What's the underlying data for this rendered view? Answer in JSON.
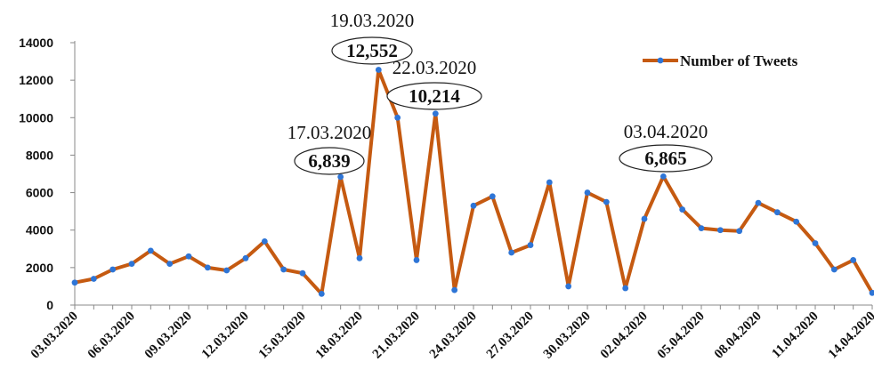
{
  "chart_data": {
    "type": "line",
    "title": "",
    "xlabel": "",
    "ylabel": "",
    "ylim": [
      0,
      14000
    ],
    "yticks": [
      0,
      2000,
      4000,
      6000,
      8000,
      10000,
      12000,
      14000
    ],
    "ytick_labels": [
      "0",
      "2000",
      "4000",
      "6000",
      "8000",
      "10000",
      "12000",
      "14000"
    ],
    "x": [
      "03.03.2020",
      "04.03.2020",
      "05.03.2020",
      "06.03.2020",
      "07.03.2020",
      "08.03.2020",
      "09.03.2020",
      "10.03.2020",
      "11.03.2020",
      "12.03.2020",
      "13.03.2020",
      "14.03.2020",
      "15.03.2020",
      "16.03.2020",
      "17.03.2020",
      "18.03.2020",
      "19.03.2020",
      "20.03.2020",
      "21.03.2020",
      "22.03.2020",
      "23.03.2020",
      "24.03.2020",
      "25.03.2020",
      "26.03.2020",
      "27.03.2020",
      "28.03.2020",
      "29.03.2020",
      "30.03.2020",
      "31.03.2020",
      "01.04.2020",
      "02.04.2020",
      "03.04.2020",
      "04.04.2020",
      "05.04.2020",
      "06.04.2020",
      "07.04.2020",
      "08.04.2020",
      "09.04.2020",
      "10.04.2020",
      "11.04.2020",
      "12.04.2020",
      "13.04.2020",
      "14.04.2020"
    ],
    "xtick_labels": [
      "03.03.2020",
      "06.03.2020",
      "09.03.2020",
      "12.03.2020",
      "15.03.2020",
      "18.03.2020",
      "21.03.2020",
      "24.03.2020",
      "27.03.2020",
      "30.03.2020",
      "02.04.2020",
      "05.04.2020",
      "08.04.2020",
      "11.04.2020",
      "14.04.2020"
    ],
    "series": [
      {
        "name": "Number of Tweets",
        "color": "#c55a11",
        "marker_color": "#2e75d6",
        "values": [
          1200,
          1400,
          1900,
          2200,
          2900,
          2200,
          2600,
          2000,
          1850,
          2500,
          3400,
          1900,
          1700,
          600,
          6839,
          2500,
          12552,
          10000,
          2400,
          10214,
          800,
          5300,
          5800,
          2800,
          3200,
          6550,
          1000,
          6000,
          5500,
          900,
          4600,
          6865,
          5100,
          4100,
          4000,
          3950,
          5450,
          4950,
          4450,
          3300,
          1900,
          2400,
          650
        ]
      }
    ],
    "legend": {
      "position": "top-right",
      "label": "Number of Tweets"
    },
    "annotations": [
      {
        "date": "17.03.2020",
        "value": "6,839",
        "x_index": 14
      },
      {
        "date": "19.03.2020",
        "value": "12,552",
        "x_index": 16
      },
      {
        "date": "22.03.2020",
        "value": "10,214",
        "x_index": 19
      },
      {
        "date": "03.04.2020",
        "value": "6,865",
        "x_index": 31
      }
    ],
    "grid": false
  }
}
